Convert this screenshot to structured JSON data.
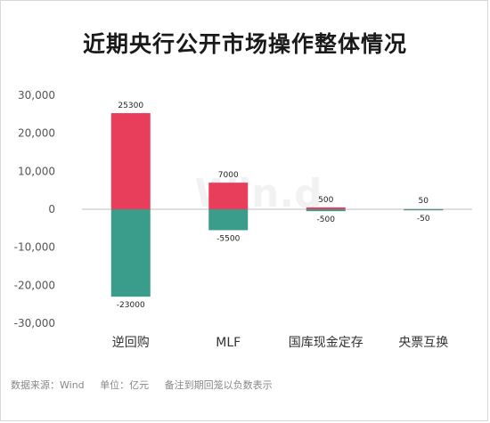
{
  "title": "近期央行公开市场操作整体情况",
  "footer": {
    "source": "数据来源：Wind",
    "unit": "单位：亿元",
    "note": "备注到期回笼以负数表示"
  },
  "watermark": "Win.d",
  "colors": {
    "positive": "#e83e5c",
    "negative": "#3a9c8a",
    "axis_text": "#555555",
    "grid": "#bfbfbf"
  },
  "chart_data": {
    "type": "bar",
    "categories": [
      "逆回购",
      "MLF",
      "国库现金定存",
      "央票互换"
    ],
    "series": [
      {
        "values": [
          25300,
          7000,
          500,
          50
        ]
      },
      {
        "values": [
          -23000,
          -5500,
          -500,
          -50
        ]
      }
    ],
    "data_labels": {
      "positive": [
        "25300",
        "7000",
        "500",
        "50"
      ],
      "negative": [
        "-23000",
        "-5500",
        "-500",
        "-50"
      ]
    },
    "ylim": [
      -30000,
      30000
    ],
    "yticks": [
      30000,
      20000,
      10000,
      0,
      -10000,
      -20000,
      -30000
    ],
    "ytick_labels": [
      "30,000",
      "20,000",
      "10,000",
      "0",
      "-10,000",
      "-20,000",
      "-30,000"
    ],
    "grid": false,
    "stacked": true
  }
}
